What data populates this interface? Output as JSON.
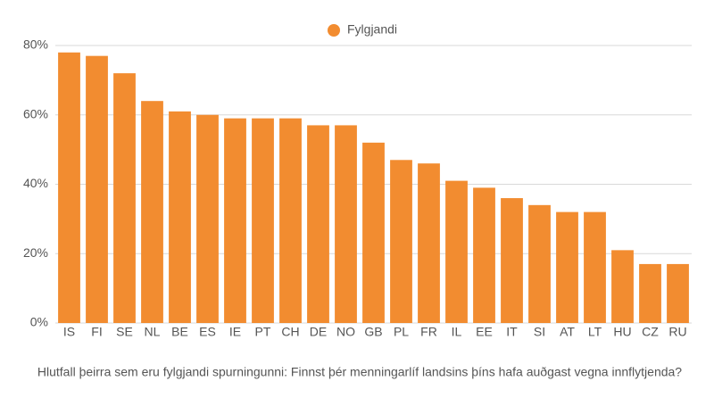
{
  "chart_data": {
    "type": "bar",
    "caption": "Hlutfall þeirra sem eru fylgjandi spurningunni: Finnst þér menningarlíf landsins þíns hafa auðgast vegna innflytjenda?",
    "categories": [
      "IS",
      "FI",
      "SE",
      "NL",
      "BE",
      "ES",
      "IE",
      "PT",
      "CH",
      "DE",
      "NO",
      "GB",
      "PL",
      "FR",
      "IL",
      "EE",
      "IT",
      "SI",
      "AT",
      "LT",
      "HU",
      "CZ",
      "RU"
    ],
    "series": [
      {
        "name": "Fylgjandi",
        "color": "#f28c30",
        "values": [
          78,
          77,
          72,
          64,
          61,
          60,
          59,
          59,
          59,
          57,
          57,
          52,
          47,
          46,
          41,
          39,
          36,
          34,
          32,
          32,
          21,
          17,
          17
        ]
      }
    ],
    "ylim": [
      0,
      80
    ],
    "yticks": [
      {
        "value": 0,
        "label": "0%"
      },
      {
        "value": 20,
        "label": "20%"
      },
      {
        "value": 40,
        "label": "40%"
      },
      {
        "value": 60,
        "label": "60%"
      },
      {
        "value": 80,
        "label": "80%"
      }
    ],
    "grid": true,
    "legend": "top"
  }
}
